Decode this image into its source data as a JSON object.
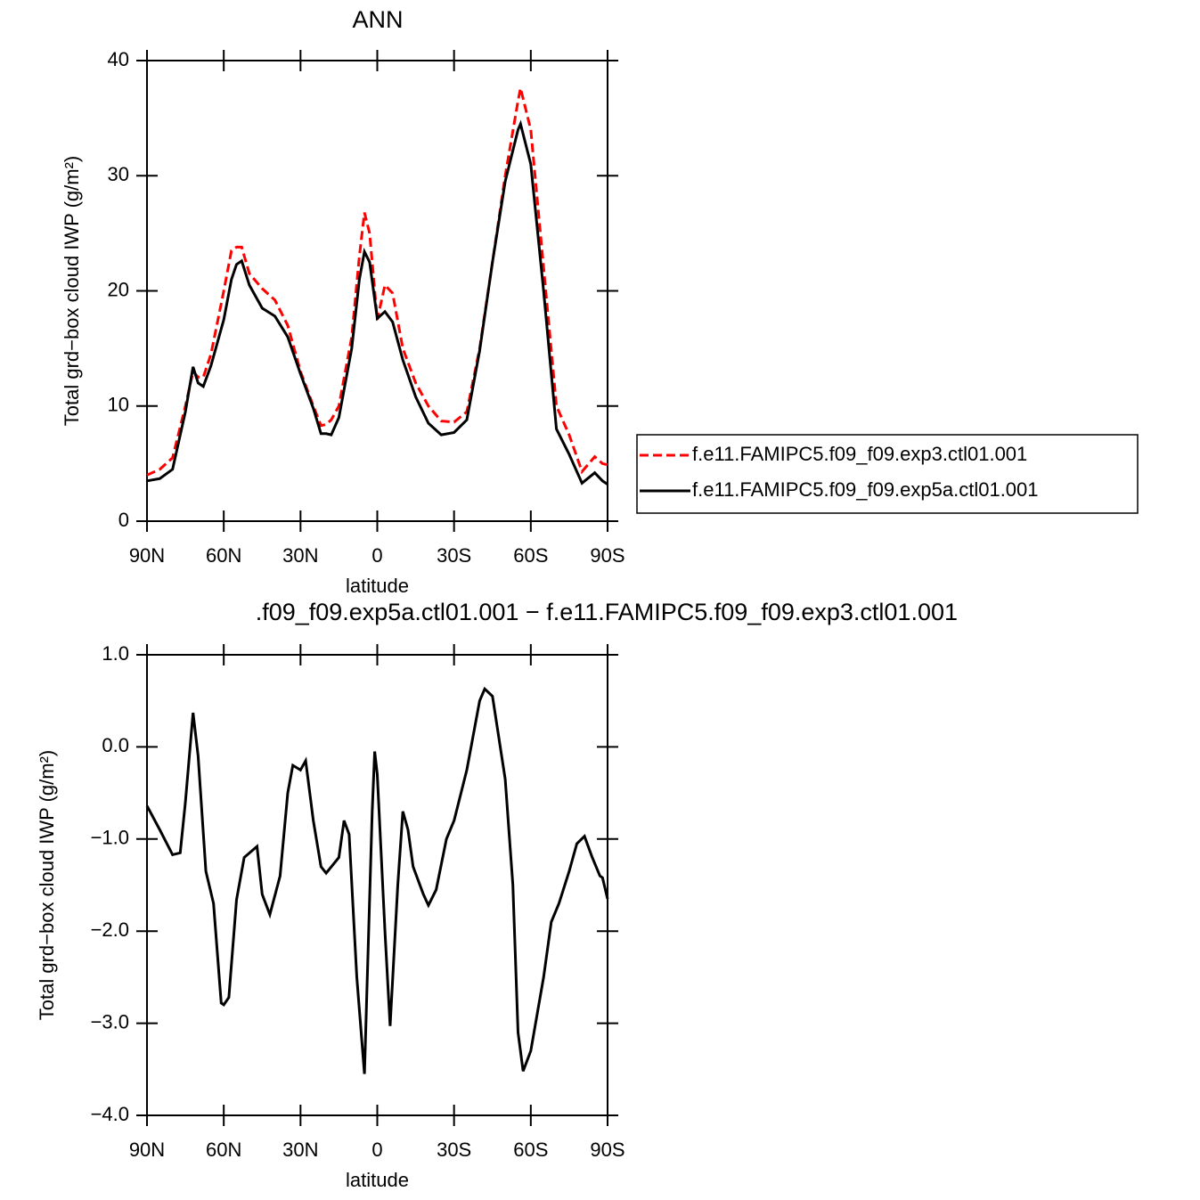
{
  "chart_data": [
    {
      "type": "line",
      "title": "ANN",
      "xlabel": "latitude",
      "ylabel": "Total grd−box cloud IWP (g/m²)",
      "x": [
        90,
        85,
        80,
        75,
        72,
        70,
        68,
        65,
        60,
        57,
        55,
        53,
        50,
        45,
        40,
        35,
        30,
        25,
        22,
        20,
        18,
        15,
        10,
        7,
        5,
        3,
        0,
        -3,
        -6,
        -10,
        -15,
        -20,
        -25,
        -30,
        -35,
        -40,
        -45,
        -50,
        -55,
        -56,
        -60,
        -65,
        -70,
        -75,
        -80,
        -85,
        -88,
        -90
      ],
      "xlim": [
        90,
        -90
      ],
      "xticks": [
        {
          "value": 90,
          "label": "90N"
        },
        {
          "value": 60,
          "label": "60N"
        },
        {
          "value": 30,
          "label": "30N"
        },
        0,
        {
          "value": -30,
          "label": "30S"
        },
        {
          "value": -60,
          "label": "60S"
        },
        {
          "value": -90,
          "label": "90S"
        }
      ],
      "ylim": [
        0,
        40
      ],
      "yticks": [
        0,
        10,
        20,
        30,
        40
      ],
      "legend": "right",
      "series": [
        {
          "name": "f.e11.FAMIPC5.f09_f09.exp3.ctl01.001",
          "color": "#ff0000",
          "dash": "dashed",
          "values": [
            4.0,
            4.5,
            5.5,
            10,
            13.0,
            12.5,
            12.5,
            14.5,
            20,
            23.5,
            23.8,
            23.8,
            21.5,
            20.2,
            19.2,
            17,
            13,
            10,
            8.3,
            8.4,
            8.8,
            10,
            16,
            23,
            26.8,
            25,
            17.5,
            20.5,
            19.8,
            15,
            12,
            10,
            8.7,
            8.6,
            9.5,
            15,
            22.5,
            30,
            36.5,
            37.6,
            34,
            22,
            10,
            7.5,
            4.3,
            5.6,
            5.0,
            4.9
          ]
        },
        {
          "name": "f.e11.FAMIPC5.f09_f09.exp5a.ctl01.001",
          "color": "#000000",
          "dash": "solid",
          "values": [
            3.5,
            3.7,
            4.5,
            9.5,
            13.4,
            12.0,
            11.7,
            13.5,
            17.5,
            21,
            22.3,
            22.6,
            20.5,
            18.5,
            17.8,
            16.0,
            12.8,
            9.8,
            7.6,
            7.6,
            7.5,
            9.0,
            15,
            21,
            23.4,
            22.5,
            17.6,
            18.2,
            17.3,
            14,
            10.8,
            8.5,
            7.5,
            7.7,
            8.8,
            14.8,
            22.5,
            29.5,
            34,
            34.5,
            31,
            20,
            8,
            5.8,
            3.3,
            4.2,
            3.5,
            3.2
          ]
        }
      ]
    },
    {
      "type": "line",
      "title": ".f09_f09.exp5a.ctl01.001 − f.e11.FAMIPC5.f09_f09.exp3.ctl01.001",
      "xlabel": "latitude",
      "ylabel": "Total grd−box cloud IWP (g/m²)",
      "x": [
        90,
        85,
        80,
        77,
        75,
        72,
        70,
        67,
        64,
        61,
        60,
        58,
        55,
        52,
        47,
        45,
        42,
        38,
        35,
        33,
        30,
        28,
        25,
        22,
        20,
        15,
        13,
        11,
        8,
        5,
        2,
        1,
        0,
        -3,
        -5,
        -8,
        -10,
        -12,
        -14,
        -18,
        -20,
        -23,
        -27,
        -30,
        -35,
        -40,
        -42,
        -45,
        -50,
        -53,
        -55,
        -57,
        -60,
        -65,
        -68,
        -71,
        -75,
        -78,
        -81,
        -84,
        -87,
        -88,
        -90
      ],
      "xlim": [
        90,
        -90
      ],
      "xticks": [
        {
          "value": 90,
          "label": "90N"
        },
        {
          "value": 60,
          "label": "60N"
        },
        {
          "value": 30,
          "label": "30N"
        },
        0,
        {
          "value": -30,
          "label": "30S"
        },
        {
          "value": -60,
          "label": "60S"
        },
        {
          "value": -90,
          "label": "90S"
        }
      ],
      "ylim": [
        -4,
        1
      ],
      "yticks": [
        {
          "value": 1,
          "label": "1.0"
        },
        {
          "value": 0,
          "label": "0.0"
        },
        {
          "value": -1,
          "label": "−1.0"
        },
        {
          "value": -2,
          "label": "−2.0"
        },
        {
          "value": -3,
          "label": "−3.0"
        },
        {
          "value": -4,
          "label": "−4.0"
        }
      ],
      "series": [
        {
          "color": "#000000",
          "dash": "solid",
          "values": [
            -0.64,
            -0.9,
            -1.17,
            -1.15,
            -0.6,
            0.37,
            -0.1,
            -1.35,
            -1.7,
            -2.78,
            -2.8,
            -2.72,
            -1.66,
            -1.2,
            -1.08,
            -1.6,
            -1.82,
            -1.4,
            -0.5,
            -0.2,
            -0.25,
            -0.15,
            -0.8,
            -1.3,
            -1.37,
            -1.2,
            -0.8,
            -0.95,
            -2.5,
            -3.55,
            -0.7,
            -0.05,
            -0.3,
            -2.0,
            -3.03,
            -1.5,
            -0.7,
            -0.9,
            -1.3,
            -1.6,
            -1.72,
            -1.55,
            -1.0,
            -0.8,
            -0.25,
            0.5,
            0.63,
            0.55,
            -0.35,
            -1.5,
            -3.1,
            -3.52,
            -3.3,
            -2.5,
            -1.9,
            -1.7,
            -1.35,
            -1.05,
            -0.97,
            -1.2,
            -1.4,
            -1.42,
            -1.65
          ]
        }
      ]
    }
  ]
}
